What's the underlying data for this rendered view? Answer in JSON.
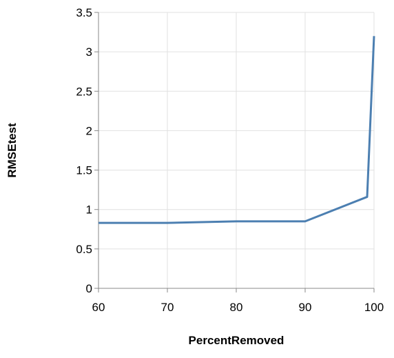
{
  "chart_data": {
    "type": "line",
    "xlabel": "PercentRemoved",
    "ylabel": "RMSEtest",
    "xlim": [
      60,
      100
    ],
    "ylim": [
      0,
      3.5
    ],
    "x_ticks": [
      "60",
      "70",
      "80",
      "90",
      "100"
    ],
    "y_ticks": [
      "0",
      "0.5",
      "1",
      "1.5",
      "2",
      "2.5",
      "3",
      "3.5"
    ],
    "grid": true,
    "series": [
      {
        "x": [
          60,
          70,
          80,
          90,
          99,
          100
        ],
        "y": [
          0.83,
          0.83,
          0.85,
          0.85,
          1.16,
          3.2
        ]
      }
    ],
    "colors": {
      "line": "#4c7fb1",
      "grid": "#e0e0e0",
      "axis": "#888888",
      "text": "#000000"
    }
  }
}
